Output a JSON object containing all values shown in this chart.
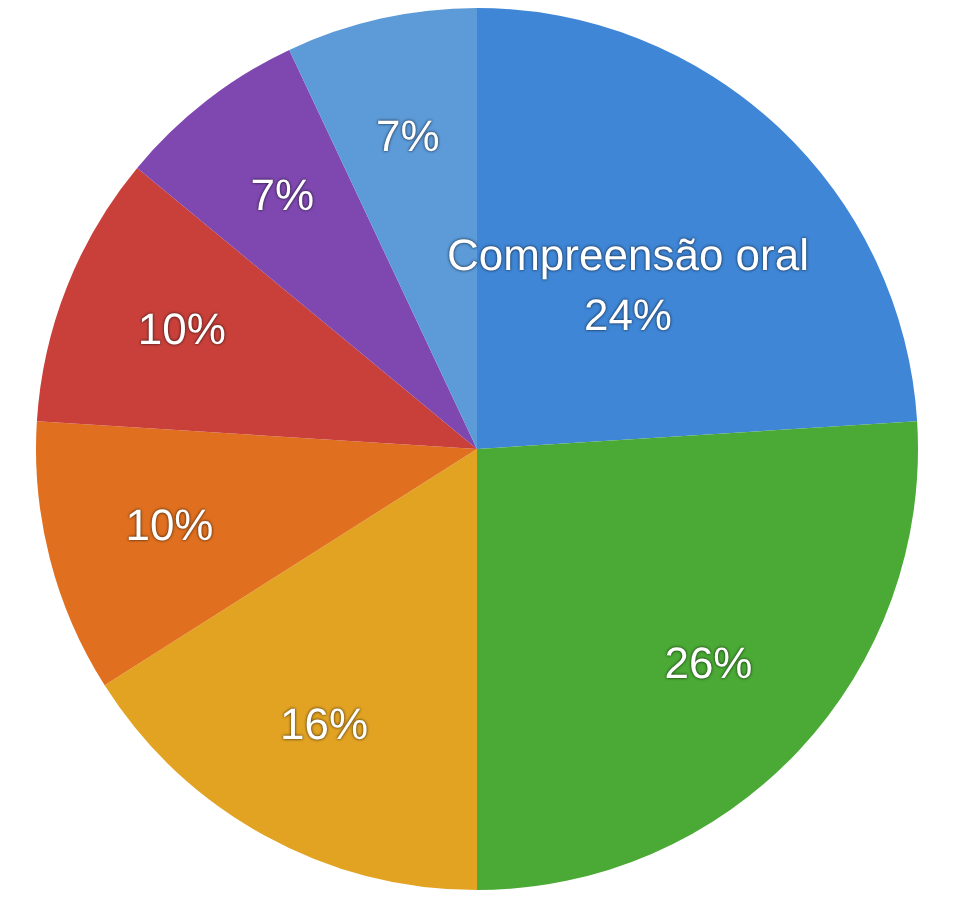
{
  "chart_data": {
    "type": "pie",
    "categories": [
      "Compreensão oral",
      null,
      null,
      null,
      null,
      null,
      null
    ],
    "values": [
      24,
      26,
      16,
      10,
      10,
      7,
      7
    ],
    "value_labels": [
      "24%",
      "26%",
      "16%",
      "10%",
      "10%",
      "7%",
      "7%"
    ],
    "colors": [
      "#3f86d6",
      "#4aaa35",
      "#e2a323",
      "#e0701f",
      "#c9403a",
      "#7f48b0",
      "#5c9ad8"
    ],
    "legend": false
  }
}
